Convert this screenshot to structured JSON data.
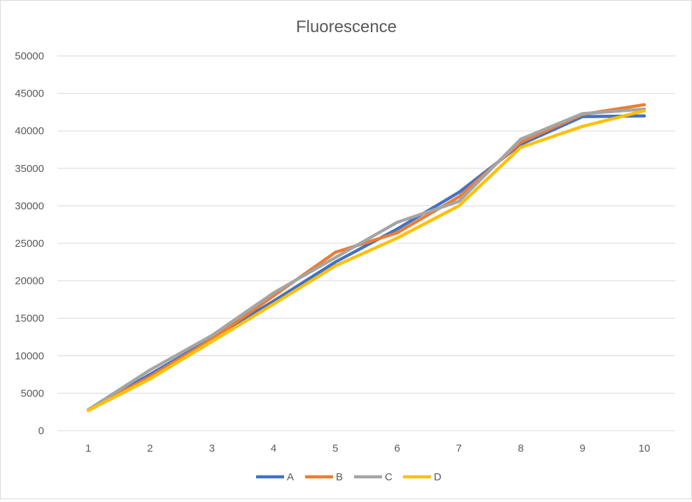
{
  "chart_data": {
    "type": "line",
    "title": "Fluorescence",
    "xlabel": "",
    "ylabel": "",
    "categories": [
      "1",
      "2",
      "3",
      "4",
      "5",
      "6",
      "7",
      "8",
      "9",
      "10"
    ],
    "ylim": [
      0,
      50000
    ],
    "yticks": [
      "0",
      "5000",
      "10000",
      "15000",
      "20000",
      "25000",
      "30000",
      "35000",
      "40000",
      "45000",
      "50000"
    ],
    "grid": true,
    "legend_position": "bottom",
    "series": [
      {
        "name": "A",
        "color": "#4472C4",
        "values": [
          2800,
          7500,
          12300,
          17300,
          22500,
          26900,
          31800,
          38200,
          41900,
          42000
        ]
      },
      {
        "name": "B",
        "color": "#ED7D31",
        "values": [
          2800,
          7200,
          12200,
          18000,
          23800,
          26400,
          31200,
          38500,
          42200,
          43500
        ]
      },
      {
        "name": "C",
        "color": "#A5A5A5",
        "values": [
          2800,
          8100,
          12700,
          18400,
          23100,
          27800,
          30600,
          38900,
          42300,
          42900
        ]
      },
      {
        "name": "D",
        "color": "#FFC000",
        "values": [
          2700,
          6900,
          11900,
          16900,
          22000,
          25700,
          30000,
          37800,
          40600,
          42700
        ]
      }
    ]
  }
}
